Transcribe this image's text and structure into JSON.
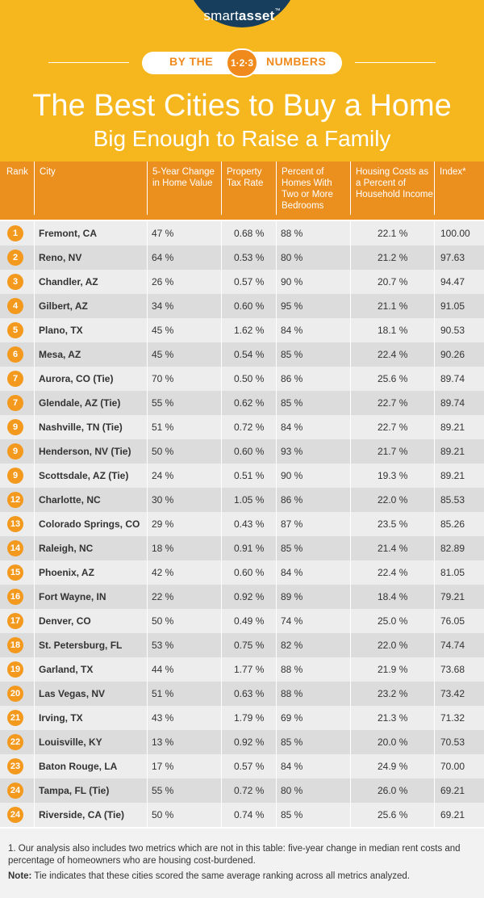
{
  "brand": {
    "logo_main": "smart",
    "logo_bold": "asset",
    "logo_tm": "™"
  },
  "banner": {
    "left": "BY THE",
    "middle": "1·2·3",
    "right": "NUMBERS"
  },
  "title": {
    "line1": "The Best Cities to Buy a Home",
    "line2": "Big Enough to Raise a Family"
  },
  "colors": {
    "header_bg": "#F6B71E",
    "table_header_bg": "#EB8F1F",
    "badge": "#F39A1E",
    "logo_bg": "#173E5C"
  },
  "chart_data": {
    "type": "table",
    "columns": [
      "Rank",
      "City",
      "5-Year Change in Home Value",
      "Property Tax Rate",
      "Percent of Homes With Two or More Bedrooms",
      "Housing Costs as a Percent of Household Income",
      "Index*"
    ],
    "rows": [
      [
        "1",
        "Fremont, CA",
        "47 %",
        "0.68 %",
        "88 %",
        "22.1 %",
        "100.00"
      ],
      [
        "2",
        "Reno, NV",
        "64 %",
        "0.53 %",
        "80 %",
        "21.2 %",
        "97.63"
      ],
      [
        "3",
        "Chandler, AZ",
        "26 %",
        "0.57 %",
        "90 %",
        "20.7 %",
        "94.47"
      ],
      [
        "4",
        "Gilbert, AZ",
        "34 %",
        "0.60 %",
        "95 %",
        "21.1 %",
        "91.05"
      ],
      [
        "5",
        "Plano, TX",
        "45 %",
        "1.62 %",
        "84 %",
        "18.1 %",
        "90.53"
      ],
      [
        "6",
        "Mesa, AZ",
        "45 %",
        "0.54 %",
        "85 %",
        "22.4 %",
        "90.26"
      ],
      [
        "7",
        "Aurora, CO (Tie)",
        "70 %",
        "0.50 %",
        "86 %",
        "25.6 %",
        "89.74"
      ],
      [
        "7",
        "Glendale, AZ (Tie)",
        "55 %",
        "0.62 %",
        "85 %",
        "22.7 %",
        "89.74"
      ],
      [
        "9",
        "Nashville, TN (Tie)",
        "51 %",
        "0.72 %",
        "84 %",
        "22.7 %",
        "89.21"
      ],
      [
        "9",
        "Henderson, NV (Tie)",
        "50 %",
        "0.60 %",
        "93 %",
        "21.7 %",
        "89.21"
      ],
      [
        "9",
        "Scottsdale, AZ (Tie)",
        "24 %",
        "0.51 %",
        "90 %",
        "19.3 %",
        "89.21"
      ],
      [
        "12",
        "Charlotte, NC",
        "30 %",
        "1.05 %",
        "86 %",
        "22.0 %",
        "85.53"
      ],
      [
        "13",
        "Colorado Springs, CO",
        "29 %",
        "0.43 %",
        "87 %",
        "23.5 %",
        "85.26"
      ],
      [
        "14",
        "Raleigh, NC",
        "18 %",
        "0.91 %",
        "85 %",
        "21.4 %",
        "82.89"
      ],
      [
        "15",
        "Phoenix, AZ",
        "42 %",
        "0.60 %",
        "84 %",
        "22.4 %",
        "81.05"
      ],
      [
        "16",
        "Fort Wayne, IN",
        "22 %",
        "0.92 %",
        "89 %",
        "18.4 %",
        "79.21"
      ],
      [
        "17",
        "Denver, CO",
        "50 %",
        "0.49 %",
        "74 %",
        "25.0 %",
        "76.05"
      ],
      [
        "18",
        "St. Petersburg, FL",
        "53 %",
        "0.75 %",
        "82 %",
        "22.0 %",
        "74.74"
      ],
      [
        "19",
        "Garland, TX",
        "44 %",
        "1.77 %",
        "88 %",
        "21.9 %",
        "73.68"
      ],
      [
        "20",
        "Las Vegas, NV",
        "51 %",
        "0.63 %",
        "88 %",
        "23.2 %",
        "73.42"
      ],
      [
        "21",
        "Irving, TX",
        "43 %",
        "1.79 %",
        "69 %",
        "21.3 %",
        "71.32"
      ],
      [
        "22",
        "Louisville, KY",
        "13 %",
        "0.92 %",
        "85 %",
        "20.0 %",
        "70.53"
      ],
      [
        "23",
        "Baton Rouge, LA",
        "17 %",
        "0.57 %",
        "84 %",
        "24.9 %",
        "70.00"
      ],
      [
        "24",
        "Tampa, FL (Tie)",
        "55 %",
        "0.72 %",
        "80 %",
        "26.0 %",
        "69.21"
      ],
      [
        "24",
        "Riverside, CA (Tie)",
        "50 %",
        "0.74 %",
        "85 %",
        "25.6 %",
        "69.21"
      ]
    ]
  },
  "footer": {
    "footnote": "1. Our analysis also includes two metrics which are not in this table: five-year change in median rent costs and percentage of homeowners who are housing cost-burdened.",
    "note_label": "Note:",
    "note_text": " Tie indicates that these cities scored the same average ranking across all metrics analyzed."
  }
}
